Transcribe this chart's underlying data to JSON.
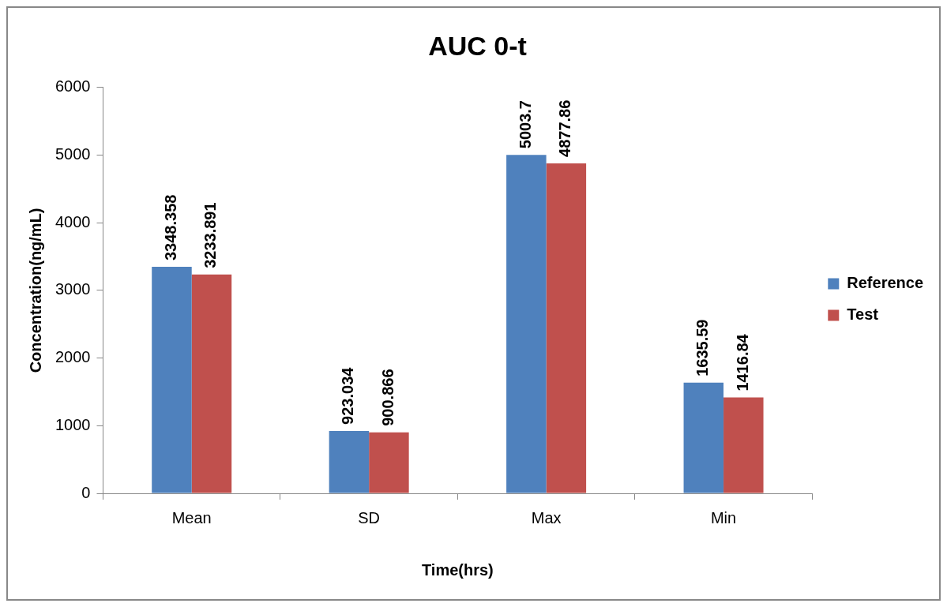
{
  "chart_data": {
    "type": "bar",
    "title": "AUC 0-t",
    "xlabel": "Time(hrs)",
    "ylabel": "Concentration(ng/mL)",
    "categories": [
      "Mean",
      "SD",
      "Max",
      "Min"
    ],
    "series": [
      {
        "name": "Reference",
        "color": "#4f81bd",
        "values": [
          3348.358,
          923.034,
          5003.7,
          1635.59
        ]
      },
      {
        "name": "Test",
        "color": "#c0504d",
        "values": [
          3233.891,
          900.866,
          4877.86,
          1416.84
        ]
      }
    ],
    "ylim": [
      0,
      6000
    ],
    "yticks": [
      0,
      1000,
      2000,
      3000,
      4000,
      5000,
      6000
    ],
    "grid": false,
    "legend": "right",
    "data_labels": true
  }
}
